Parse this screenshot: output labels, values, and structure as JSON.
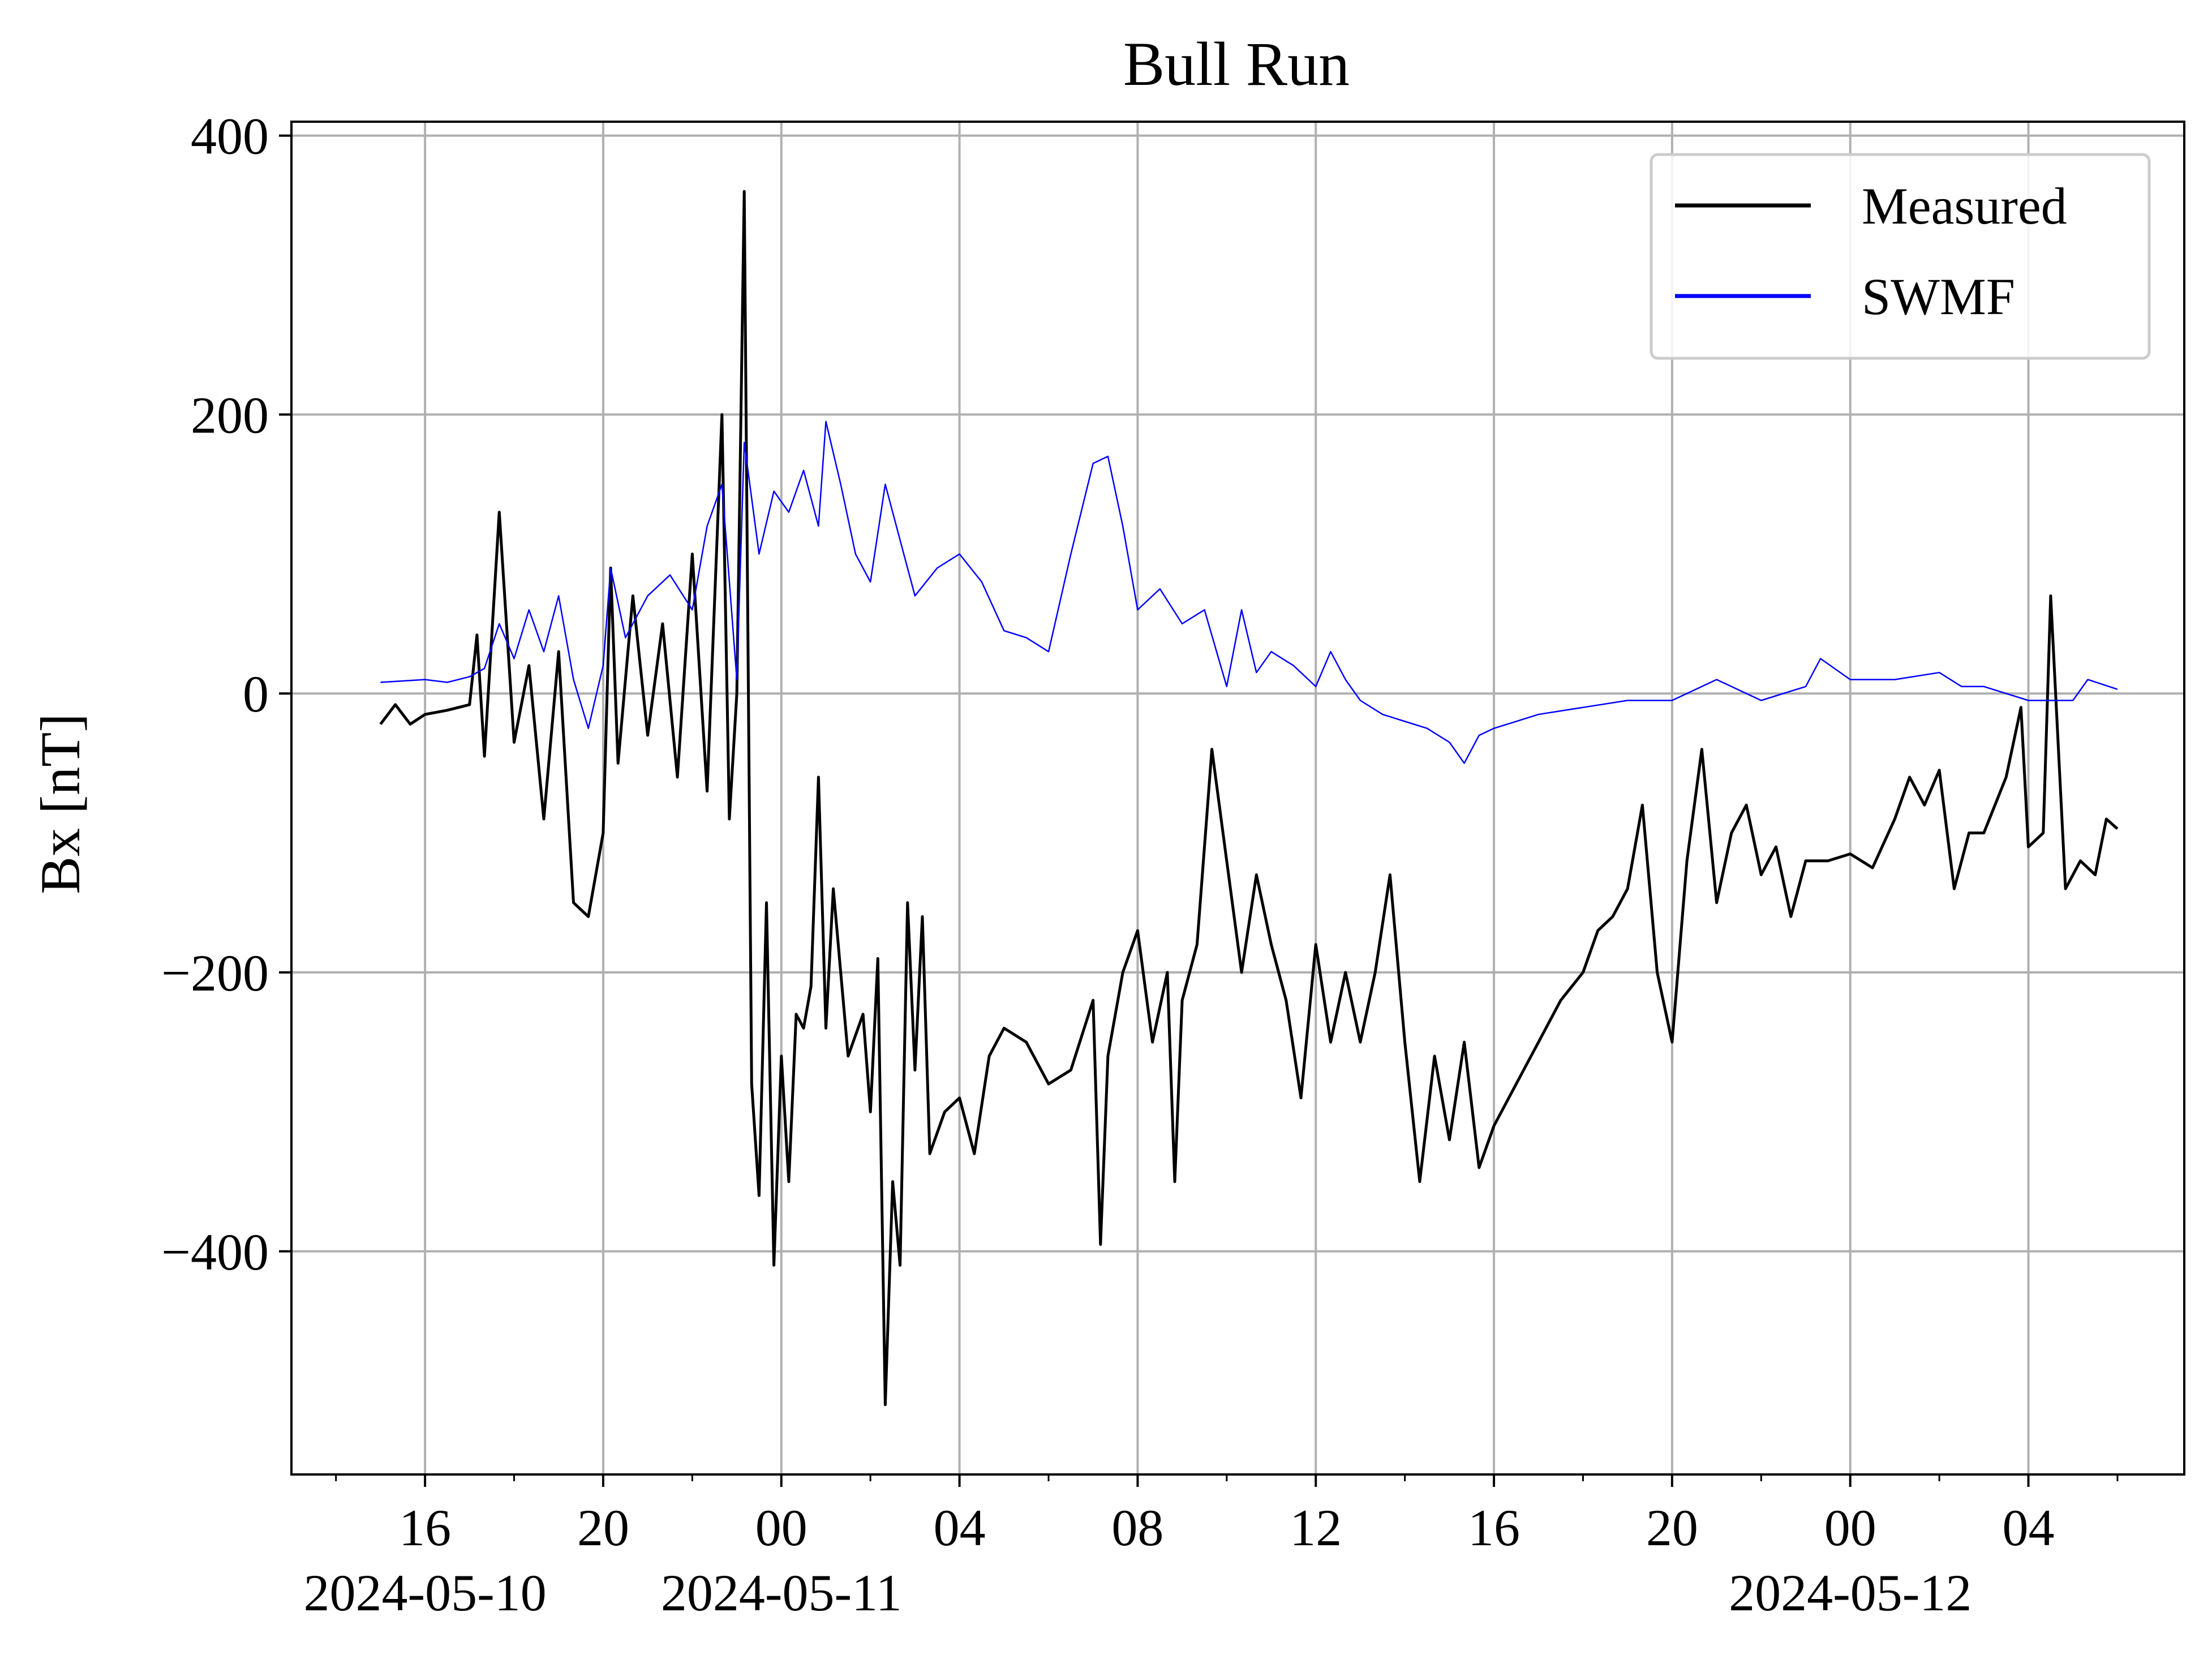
{
  "chart_data": {
    "type": "line",
    "title": "Bull Run",
    "xlabel": "",
    "ylabel": "Bx [nT]",
    "x_range": [
      "2024-05-10T13:00",
      "2024-05-12T07:30"
    ],
    "ylim": [
      -560,
      410
    ],
    "yticks": [
      400,
      200,
      0,
      -200,
      -400
    ],
    "ytick_labels": [
      "400",
      "200",
      "0",
      "−200",
      "−400"
    ],
    "xticks": [
      "2024-05-10T16:00",
      "2024-05-10T20:00",
      "2024-05-11T00:00",
      "2024-05-11T04:00",
      "2024-05-11T08:00",
      "2024-05-11T12:00",
      "2024-05-11T16:00",
      "2024-05-11T20:00",
      "2024-05-12T00:00",
      "2024-05-12T04:00"
    ],
    "xtick_labels": [
      "16",
      "20",
      "00",
      "04",
      "08",
      "12",
      "16",
      "20",
      "00",
      "04"
    ],
    "date_labels": [
      {
        "at": "2024-05-10T16:00",
        "text": "2024-05-10"
      },
      {
        "at": "2024-05-11T00:00",
        "text": "2024-05-11"
      },
      {
        "at": "2024-05-12T00:00",
        "text": "2024-05-12"
      }
    ],
    "grid": true,
    "legend_position": "upper-right",
    "series": [
      {
        "name": "Measured",
        "color": "#000000",
        "points": [
          [
            "2024-05-10T15:00",
            -22
          ],
          [
            "2024-05-10T15:20",
            -8
          ],
          [
            "2024-05-10T15:40",
            -22
          ],
          [
            "2024-05-10T16:00",
            -15
          ],
          [
            "2024-05-10T16:30",
            -12
          ],
          [
            "2024-05-10T17:00",
            -8
          ],
          [
            "2024-05-10T17:10",
            42
          ],
          [
            "2024-05-10T17:20",
            -45
          ],
          [
            "2024-05-10T17:40",
            130
          ],
          [
            "2024-05-10T18:00",
            -35
          ],
          [
            "2024-05-10T18:20",
            20
          ],
          [
            "2024-05-10T18:40",
            -90
          ],
          [
            "2024-05-10T19:00",
            30
          ],
          [
            "2024-05-10T19:20",
            -150
          ],
          [
            "2024-05-10T19:40",
            -160
          ],
          [
            "2024-05-10T20:00",
            -100
          ],
          [
            "2024-05-10T20:10",
            90
          ],
          [
            "2024-05-10T20:20",
            -50
          ],
          [
            "2024-05-10T20:40",
            70
          ],
          [
            "2024-05-10T21:00",
            -30
          ],
          [
            "2024-05-10T21:20",
            50
          ],
          [
            "2024-05-10T21:40",
            -60
          ],
          [
            "2024-05-10T22:00",
            100
          ],
          [
            "2024-05-10T22:20",
            -70
          ],
          [
            "2024-05-10T22:40",
            200
          ],
          [
            "2024-05-10T22:50",
            -90
          ],
          [
            "2024-05-10T23:00",
            0
          ],
          [
            "2024-05-10T23:10",
            360
          ],
          [
            "2024-05-10T23:20",
            -280
          ],
          [
            "2024-05-10T23:30",
            -360
          ],
          [
            "2024-05-10T23:40",
            -150
          ],
          [
            "2024-05-10T23:50",
            -410
          ],
          [
            "2024-05-11T00:00",
            -260
          ],
          [
            "2024-05-11T00:10",
            -350
          ],
          [
            "2024-05-11T00:20",
            -230
          ],
          [
            "2024-05-11T00:30",
            -240
          ],
          [
            "2024-05-11T00:40",
            -210
          ],
          [
            "2024-05-11T00:50",
            -60
          ],
          [
            "2024-05-11T01:00",
            -240
          ],
          [
            "2024-05-11T01:10",
            -140
          ],
          [
            "2024-05-11T01:30",
            -260
          ],
          [
            "2024-05-11T01:50",
            -230
          ],
          [
            "2024-05-11T02:00",
            -300
          ],
          [
            "2024-05-11T02:10",
            -190
          ],
          [
            "2024-05-11T02:20",
            -510
          ],
          [
            "2024-05-11T02:30",
            -350
          ],
          [
            "2024-05-11T02:40",
            -410
          ],
          [
            "2024-05-11T02:50",
            -150
          ],
          [
            "2024-05-11T03:00",
            -270
          ],
          [
            "2024-05-11T03:10",
            -160
          ],
          [
            "2024-05-11T03:20",
            -330
          ],
          [
            "2024-05-11T03:40",
            -300
          ],
          [
            "2024-05-11T04:00",
            -290
          ],
          [
            "2024-05-11T04:20",
            -330
          ],
          [
            "2024-05-11T04:40",
            -260
          ],
          [
            "2024-05-11T05:00",
            -240
          ],
          [
            "2024-05-11T05:30",
            -250
          ],
          [
            "2024-05-11T06:00",
            -280
          ],
          [
            "2024-05-11T06:30",
            -270
          ],
          [
            "2024-05-11T07:00",
            -220
          ],
          [
            "2024-05-11T07:10",
            -395
          ],
          [
            "2024-05-11T07:20",
            -260
          ],
          [
            "2024-05-11T07:40",
            -200
          ],
          [
            "2024-05-11T08:00",
            -170
          ],
          [
            "2024-05-11T08:20",
            -250
          ],
          [
            "2024-05-11T08:40",
            -200
          ],
          [
            "2024-05-11T08:50",
            -350
          ],
          [
            "2024-05-11T09:00",
            -220
          ],
          [
            "2024-05-11T09:20",
            -180
          ],
          [
            "2024-05-11T09:40",
            -40
          ],
          [
            "2024-05-11T10:00",
            -120
          ],
          [
            "2024-05-11T10:20",
            -200
          ],
          [
            "2024-05-11T10:40",
            -130
          ],
          [
            "2024-05-11T11:00",
            -180
          ],
          [
            "2024-05-11T11:20",
            -220
          ],
          [
            "2024-05-11T11:40",
            -290
          ],
          [
            "2024-05-11T12:00",
            -180
          ],
          [
            "2024-05-11T12:20",
            -250
          ],
          [
            "2024-05-11T12:40",
            -200
          ],
          [
            "2024-05-11T13:00",
            -250
          ],
          [
            "2024-05-11T13:20",
            -200
          ],
          [
            "2024-05-11T13:40",
            -130
          ],
          [
            "2024-05-11T14:00",
            -250
          ],
          [
            "2024-05-11T14:20",
            -350
          ],
          [
            "2024-05-11T14:40",
            -260
          ],
          [
            "2024-05-11T15:00",
            -320
          ],
          [
            "2024-05-11T15:20",
            -250
          ],
          [
            "2024-05-11T15:40",
            -340
          ],
          [
            "2024-05-11T16:00",
            -310
          ],
          [
            "2024-05-11T16:30",
            -280
          ],
          [
            "2024-05-11T17:00",
            -250
          ],
          [
            "2024-05-11T17:30",
            -220
          ],
          [
            "2024-05-11T18:00",
            -200
          ],
          [
            "2024-05-11T18:20",
            -170
          ],
          [
            "2024-05-11T18:40",
            -160
          ],
          [
            "2024-05-11T19:00",
            -140
          ],
          [
            "2024-05-11T19:20",
            -80
          ],
          [
            "2024-05-11T19:40",
            -200
          ],
          [
            "2024-05-11T20:00",
            -250
          ],
          [
            "2024-05-11T20:20",
            -120
          ],
          [
            "2024-05-11T20:40",
            -40
          ],
          [
            "2024-05-11T21:00",
            -150
          ],
          [
            "2024-05-11T21:20",
            -100
          ],
          [
            "2024-05-11T21:40",
            -80
          ],
          [
            "2024-05-11T22:00",
            -130
          ],
          [
            "2024-05-11T22:20",
            -110
          ],
          [
            "2024-05-11T22:40",
            -160
          ],
          [
            "2024-05-11T23:00",
            -120
          ],
          [
            "2024-05-11T23:30",
            -120
          ],
          [
            "2024-05-12T00:00",
            -115
          ],
          [
            "2024-05-12T00:30",
            -125
          ],
          [
            "2024-05-12T01:00",
            -90
          ],
          [
            "2024-05-12T01:20",
            -60
          ],
          [
            "2024-05-12T01:40",
            -80
          ],
          [
            "2024-05-12T02:00",
            -55
          ],
          [
            "2024-05-12T02:20",
            -140
          ],
          [
            "2024-05-12T02:40",
            -100
          ],
          [
            "2024-05-12T03:00",
            -100
          ],
          [
            "2024-05-12T03:30",
            -60
          ],
          [
            "2024-05-12T03:50",
            -10
          ],
          [
            "2024-05-12T04:00",
            -110
          ],
          [
            "2024-05-12T04:20",
            -100
          ],
          [
            "2024-05-12T04:30",
            70
          ],
          [
            "2024-05-12T04:50",
            -140
          ],
          [
            "2024-05-12T05:10",
            -120
          ],
          [
            "2024-05-12T05:30",
            -130
          ],
          [
            "2024-05-12T05:45",
            -90
          ],
          [
            "2024-05-12T06:00",
            -97
          ]
        ]
      },
      {
        "name": "SWMF",
        "color": "#0000ff",
        "points": [
          [
            "2024-05-10T15:00",
            8
          ],
          [
            "2024-05-10T16:00",
            10
          ],
          [
            "2024-05-10T16:30",
            8
          ],
          [
            "2024-05-10T17:00",
            12
          ],
          [
            "2024-05-10T17:20",
            18
          ],
          [
            "2024-05-10T17:40",
            50
          ],
          [
            "2024-05-10T18:00",
            25
          ],
          [
            "2024-05-10T18:20",
            60
          ],
          [
            "2024-05-10T18:40",
            30
          ],
          [
            "2024-05-10T19:00",
            70
          ],
          [
            "2024-05-10T19:20",
            10
          ],
          [
            "2024-05-10T19:40",
            -25
          ],
          [
            "2024-05-10T20:00",
            20
          ],
          [
            "2024-05-10T20:10",
            90
          ],
          [
            "2024-05-10T20:30",
            40
          ],
          [
            "2024-05-10T21:00",
            70
          ],
          [
            "2024-05-10T21:30",
            85
          ],
          [
            "2024-05-10T22:00",
            60
          ],
          [
            "2024-05-10T22:20",
            120
          ],
          [
            "2024-05-10T22:40",
            150
          ],
          [
            "2024-05-10T23:00",
            10
          ],
          [
            "2024-05-10T23:10",
            180
          ],
          [
            "2024-05-10T23:30",
            100
          ],
          [
            "2024-05-10T23:50",
            145
          ],
          [
            "2024-05-11T00:10",
            130
          ],
          [
            "2024-05-11T00:30",
            160
          ],
          [
            "2024-05-11T00:50",
            120
          ],
          [
            "2024-05-11T01:00",
            195
          ],
          [
            "2024-05-11T01:20",
            150
          ],
          [
            "2024-05-11T01:40",
            100
          ],
          [
            "2024-05-11T02:00",
            80
          ],
          [
            "2024-05-11T02:20",
            150
          ],
          [
            "2024-05-11T02:40",
            110
          ],
          [
            "2024-05-11T03:00",
            70
          ],
          [
            "2024-05-11T03:30",
            90
          ],
          [
            "2024-05-11T04:00",
            100
          ],
          [
            "2024-05-11T04:30",
            80
          ],
          [
            "2024-05-11T05:00",
            45
          ],
          [
            "2024-05-11T05:30",
            40
          ],
          [
            "2024-05-11T06:00",
            30
          ],
          [
            "2024-05-11T06:30",
            100
          ],
          [
            "2024-05-11T07:00",
            165
          ],
          [
            "2024-05-11T07:20",
            170
          ],
          [
            "2024-05-11T07:40",
            120
          ],
          [
            "2024-05-11T08:00",
            60
          ],
          [
            "2024-05-11T08:30",
            75
          ],
          [
            "2024-05-11T09:00",
            50
          ],
          [
            "2024-05-11T09:30",
            60
          ],
          [
            "2024-05-11T10:00",
            5
          ],
          [
            "2024-05-11T10:20",
            60
          ],
          [
            "2024-05-11T10:40",
            15
          ],
          [
            "2024-05-11T11:00",
            30
          ],
          [
            "2024-05-11T11:30",
            20
          ],
          [
            "2024-05-11T12:00",
            5
          ],
          [
            "2024-05-11T12:20",
            30
          ],
          [
            "2024-05-11T12:40",
            10
          ],
          [
            "2024-05-11T13:00",
            -5
          ],
          [
            "2024-05-11T13:30",
            -15
          ],
          [
            "2024-05-11T14:00",
            -20
          ],
          [
            "2024-05-11T14:30",
            -25
          ],
          [
            "2024-05-11T15:00",
            -35
          ],
          [
            "2024-05-11T15:20",
            -50
          ],
          [
            "2024-05-11T15:40",
            -30
          ],
          [
            "2024-05-11T16:00",
            -25
          ],
          [
            "2024-05-11T17:00",
            -15
          ],
          [
            "2024-05-11T18:00",
            -10
          ],
          [
            "2024-05-11T19:00",
            -5
          ],
          [
            "2024-05-11T20:00",
            -5
          ],
          [
            "2024-05-11T21:00",
            10
          ],
          [
            "2024-05-11T22:00",
            -5
          ],
          [
            "2024-05-11T23:00",
            5
          ],
          [
            "2024-05-11T23:20",
            25
          ],
          [
            "2024-05-12T00:00",
            10
          ],
          [
            "2024-05-12T01:00",
            10
          ],
          [
            "2024-05-12T02:00",
            15
          ],
          [
            "2024-05-12T02:30",
            5
          ],
          [
            "2024-05-12T03:00",
            5
          ],
          [
            "2024-05-12T04:00",
            -5
          ],
          [
            "2024-05-12T05:00",
            -5
          ],
          [
            "2024-05-12T05:20",
            10
          ],
          [
            "2024-05-12T06:00",
            3
          ]
        ]
      }
    ]
  }
}
